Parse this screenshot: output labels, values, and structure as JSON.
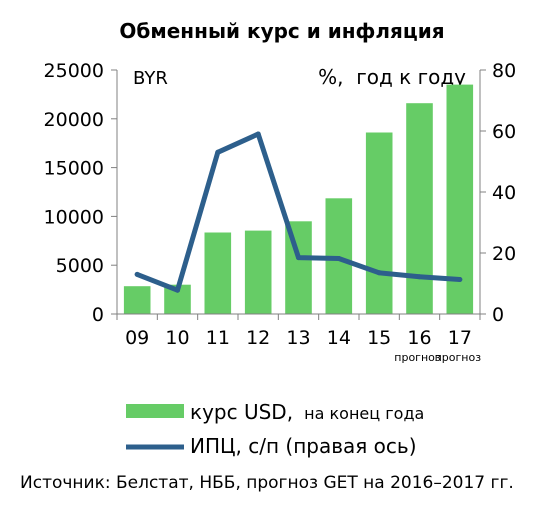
{
  "chart_data": {
    "type": "bar+line",
    "title": "Обменный курс и инфляция",
    "categories": [
      "09",
      "10",
      "11",
      "12",
      "13",
      "14",
      "15",
      "16",
      "17"
    ],
    "category_notes": [
      "",
      "",
      "",
      "",
      "",
      "",
      "",
      "прогноз",
      "прогноз"
    ],
    "left_axis": {
      "unit_label": "BYR",
      "ylim": [
        0,
        25000
      ],
      "ticks": [
        "0",
        "5000",
        "10000",
        "15000",
        "20000",
        "25000"
      ]
    },
    "right_axis": {
      "unit_label": "%,  год к году",
      "ylim": [
        0,
        80
      ],
      "ticks": [
        "0",
        "20",
        "40",
        "60",
        "80"
      ]
    },
    "series": [
      {
        "name": "курс USD,",
        "name_suffix": "на конец года",
        "type": "bar",
        "axis": "left",
        "color": "#66cc66",
        "values": [
          2850,
          3000,
          8350,
          8550,
          9500,
          11850,
          18600,
          21600,
          23500
        ]
      },
      {
        "name": "ИПЦ, с/п (правая ось)",
        "type": "line",
        "axis": "right",
        "color": "#2d5f8c",
        "values": [
          13,
          7.8,
          53,
          59,
          18.5,
          18.2,
          13.5,
          12.2,
          11.3
        ]
      }
    ],
    "grid": false,
    "legend": "bottom"
  },
  "source_note": "Источник: Белстат, НББ, прогноз GET на 2016–2017 гг."
}
